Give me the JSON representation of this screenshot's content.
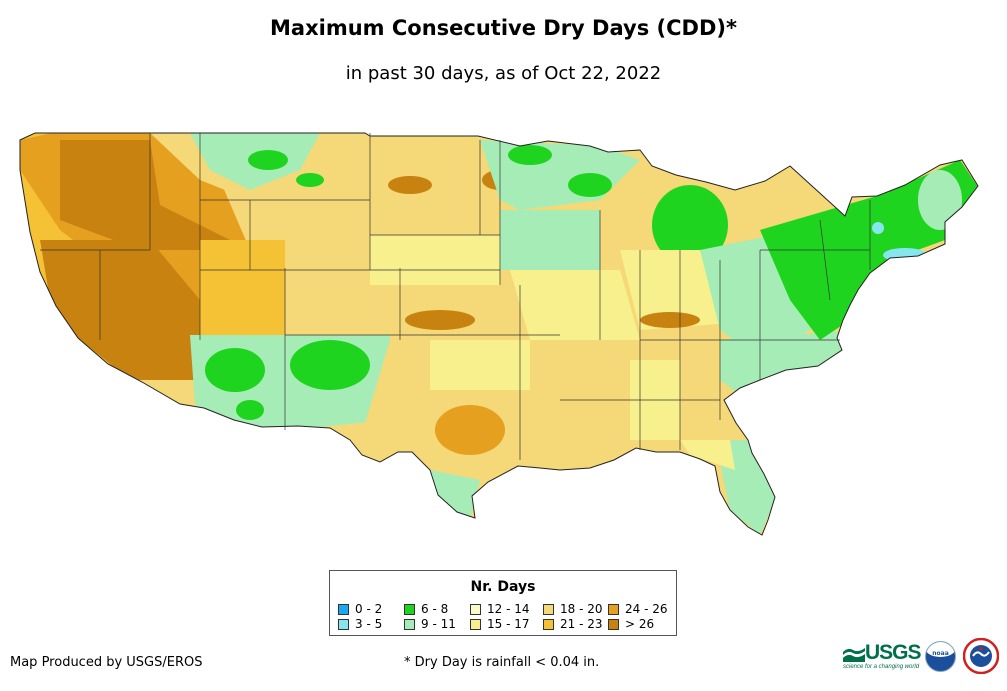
{
  "header": {
    "title": "Maximum Consecutive Dry Days (CDD)*",
    "subtitle": "in past 30 days, as of Oct 22, 2022"
  },
  "legend": {
    "title": "Nr. Days",
    "items": [
      {
        "label": "0 - 2",
        "color": "#1aa8ef"
      },
      {
        "label": "3 - 5",
        "color": "#86e6ee"
      },
      {
        "label": "6 - 8",
        "color": "#1fd41f"
      },
      {
        "label": "9 - 11",
        "color": "#a6ecb6"
      },
      {
        "label": "12 - 14",
        "color": "#fafac8"
      },
      {
        "label": "15 - 17",
        "color": "#f8f08c"
      },
      {
        "label": "18 - 20",
        "color": "#f5d877"
      },
      {
        "label": "21 - 23",
        "color": "#f5c236"
      },
      {
        "label": "24 - 26",
        "color": "#e6a020"
      },
      {
        "label": "> 26",
        "color": "#c88210"
      }
    ]
  },
  "footer": {
    "credit": "Map Produced by USGS/EROS",
    "footnote": "* Dry Day is rainfall < 0.04 in."
  },
  "logos": {
    "usgs": "USGS",
    "usgs_tagline": "science for a changing world",
    "noaa": "noaa"
  },
  "icons": {
    "usgs": "usgs-logo-icon",
    "noaa": "noaa-logo-icon",
    "nws": "nws-logo-icon"
  }
}
